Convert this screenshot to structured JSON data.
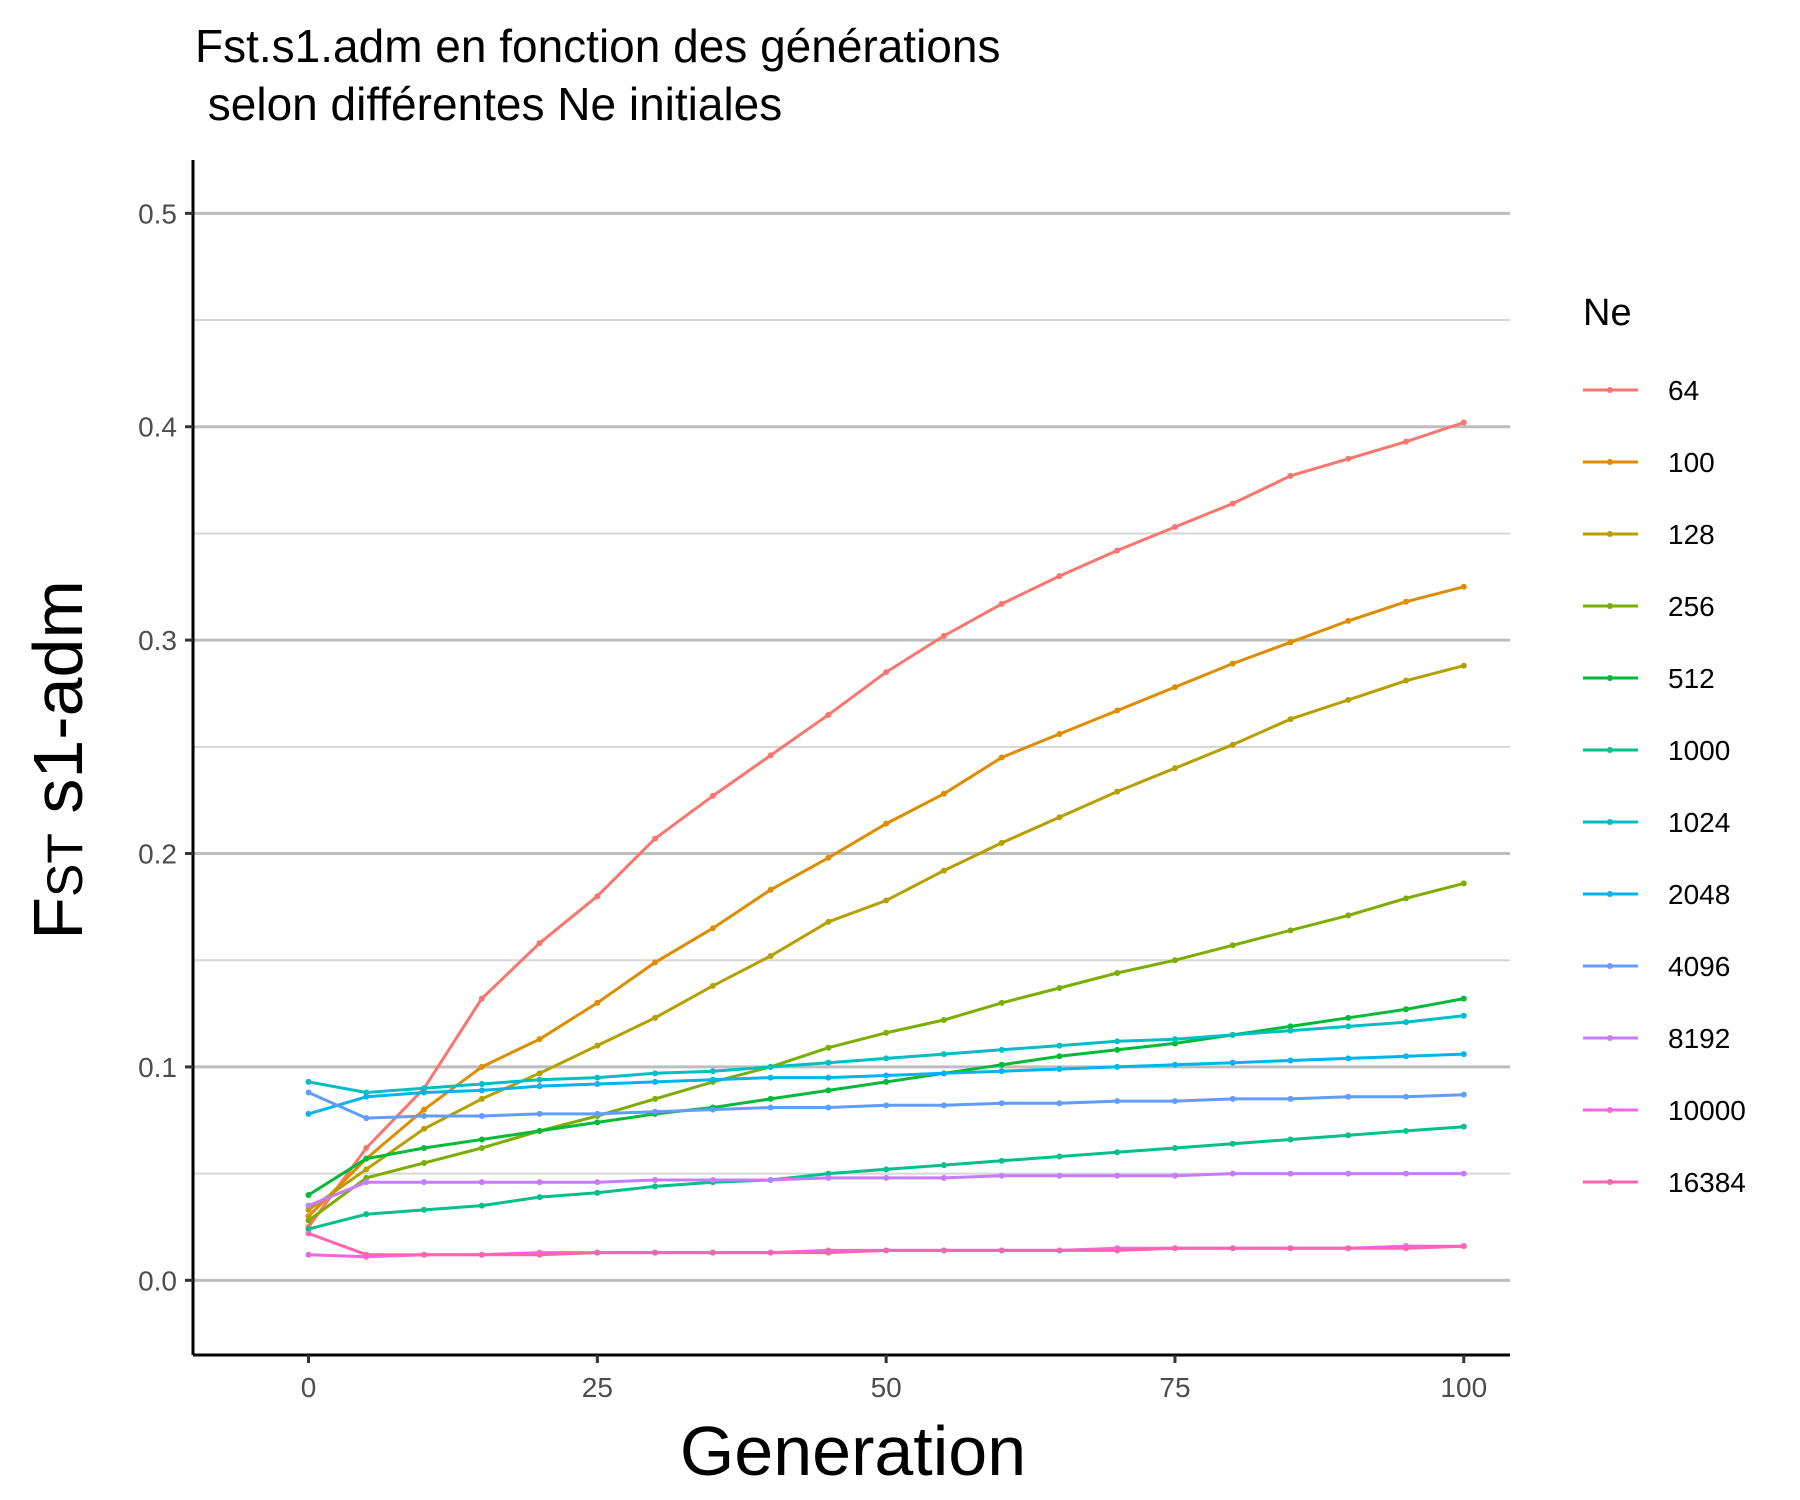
{
  "chart_data": {
    "type": "line",
    "title_lines": [
      "Fst.s1.adm en fonction des générations",
      " selon différentes Ne initiales"
    ],
    "xlabel": "Generation",
    "ylabel": {
      "main": "F",
      "sub": "ST",
      "rest": " s1-adm"
    },
    "xlim": [
      -10,
      104
    ],
    "ylim": [
      -0.035,
      0.525
    ],
    "x_ticks": [
      0,
      25,
      50,
      75,
      100
    ],
    "y_ticks": [
      0.0,
      0.1,
      0.2,
      0.3,
      0.4,
      0.5
    ],
    "y_tick_labels": [
      "0.0",
      "0.1",
      "0.2",
      "0.3",
      "0.4",
      "0.5"
    ],
    "x_tick_labels": [
      "0",
      "25",
      "50",
      "75",
      "100"
    ],
    "grid": {
      "major_y": true,
      "minor_y": true,
      "x": false
    },
    "legend": {
      "title": "Ne",
      "position": "right",
      "entries": [
        "64",
        "100",
        "128",
        "256",
        "512",
        "1000",
        "1024",
        "2048",
        "4096",
        "8192",
        "10000",
        "16384"
      ]
    },
    "x": [
      0,
      5,
      10,
      15,
      20,
      25,
      30,
      35,
      40,
      45,
      50,
      55,
      60,
      65,
      70,
      75,
      80,
      85,
      90,
      95,
      100
    ],
    "series": [
      {
        "name": "64",
        "color": "#F8766D",
        "values": [
          0.025,
          0.062,
          0.09,
          0.132,
          0.158,
          0.18,
          0.207,
          0.227,
          0.246,
          0.265,
          0.285,
          0.302,
          0.317,
          0.33,
          0.342,
          0.353,
          0.364,
          0.377,
          0.385,
          0.393,
          0.402
        ]
      },
      {
        "name": "100",
        "color": "#DE8C00",
        "values": [
          0.03,
          0.057,
          0.08,
          0.1,
          0.113,
          0.13,
          0.149,
          0.165,
          0.183,
          0.198,
          0.214,
          0.228,
          0.245,
          0.256,
          0.267,
          0.278,
          0.289,
          0.299,
          0.309,
          0.318,
          0.325
        ]
      },
      {
        "name": "128",
        "color": "#B79F00",
        "values": [
          0.033,
          0.052,
          0.071,
          0.085,
          0.097,
          0.11,
          0.123,
          0.138,
          0.152,
          0.168,
          0.178,
          0.192,
          0.205,
          0.217,
          0.229,
          0.24,
          0.251,
          0.263,
          0.272,
          0.281,
          0.288
        ]
      },
      {
        "name": "256",
        "color": "#7CAE00",
        "values": [
          0.028,
          0.048,
          0.055,
          0.062,
          0.07,
          0.077,
          0.085,
          0.093,
          0.1,
          0.109,
          0.116,
          0.122,
          0.13,
          0.137,
          0.144,
          0.15,
          0.157,
          0.164,
          0.171,
          0.179,
          0.186
        ]
      },
      {
        "name": "512",
        "color": "#00BA38",
        "values": [
          0.04,
          0.057,
          0.062,
          0.066,
          0.07,
          0.074,
          0.078,
          0.081,
          0.085,
          0.089,
          0.093,
          0.097,
          0.101,
          0.105,
          0.108,
          0.111,
          0.115,
          0.119,
          0.123,
          0.127,
          0.132
        ]
      },
      {
        "name": "1000",
        "color": "#00C08B",
        "values": [
          0.024,
          0.031,
          0.033,
          0.035,
          0.039,
          0.041,
          0.044,
          0.046,
          0.047,
          0.05,
          0.052,
          0.054,
          0.056,
          0.058,
          0.06,
          0.062,
          0.064,
          0.066,
          0.068,
          0.07,
          0.072
        ]
      },
      {
        "name": "1024",
        "color": "#00BFC4",
        "values": [
          0.093,
          0.088,
          0.09,
          0.092,
          0.094,
          0.095,
          0.097,
          0.098,
          0.1,
          0.102,
          0.104,
          0.106,
          0.108,
          0.11,
          0.112,
          0.113,
          0.115,
          0.117,
          0.119,
          0.121,
          0.124
        ]
      },
      {
        "name": "2048",
        "color": "#00B4F0",
        "values": [
          0.078,
          0.086,
          0.088,
          0.089,
          0.091,
          0.092,
          0.093,
          0.094,
          0.095,
          0.095,
          0.096,
          0.097,
          0.098,
          0.099,
          0.1,
          0.101,
          0.102,
          0.103,
          0.104,
          0.105,
          0.106
        ]
      },
      {
        "name": "4096",
        "color": "#619CFF",
        "values": [
          0.088,
          0.076,
          0.077,
          0.077,
          0.078,
          0.078,
          0.079,
          0.08,
          0.081,
          0.081,
          0.082,
          0.082,
          0.083,
          0.083,
          0.084,
          0.084,
          0.085,
          0.085,
          0.086,
          0.086,
          0.087
        ]
      },
      {
        "name": "8192",
        "color": "#C77CFF",
        "values": [
          0.035,
          0.046,
          0.046,
          0.046,
          0.046,
          0.046,
          0.047,
          0.047,
          0.047,
          0.048,
          0.048,
          0.048,
          0.049,
          0.049,
          0.049,
          0.049,
          0.05,
          0.05,
          0.05,
          0.05,
          0.05
        ]
      },
      {
        "name": "10000",
        "color": "#F564E3",
        "values": [
          0.012,
          0.011,
          0.012,
          0.012,
          0.013,
          0.013,
          0.013,
          0.013,
          0.013,
          0.014,
          0.014,
          0.014,
          0.014,
          0.014,
          0.015,
          0.015,
          0.015,
          0.015,
          0.015,
          0.016,
          0.016
        ]
      },
      {
        "name": "16384",
        "color": "#FF64B0",
        "values": [
          0.022,
          0.012,
          0.012,
          0.012,
          0.012,
          0.013,
          0.013,
          0.013,
          0.013,
          0.013,
          0.014,
          0.014,
          0.014,
          0.014,
          0.014,
          0.015,
          0.015,
          0.015,
          0.015,
          0.015,
          0.016
        ]
      }
    ]
  }
}
